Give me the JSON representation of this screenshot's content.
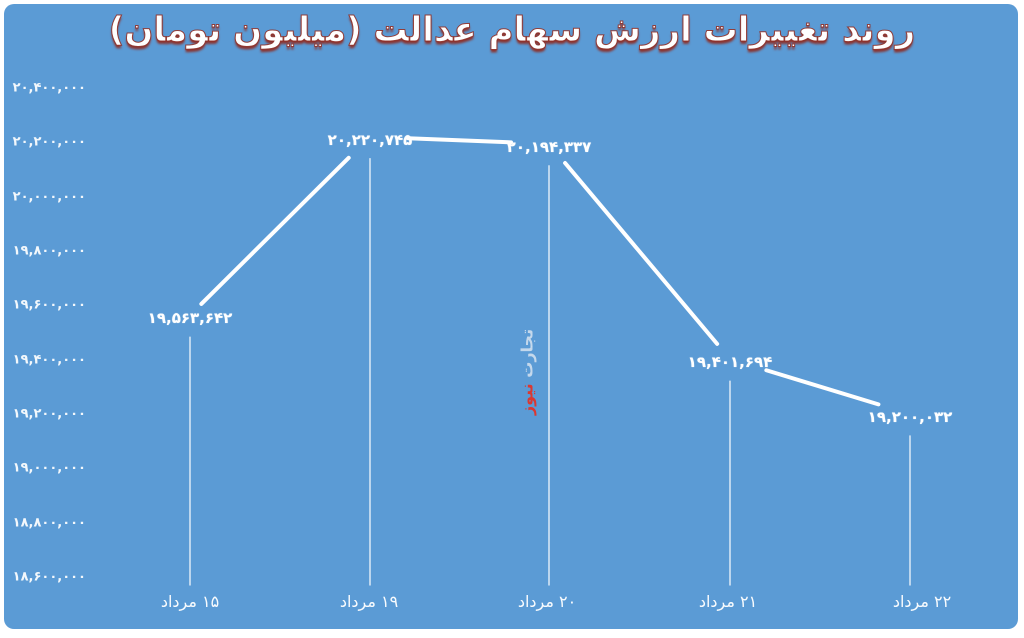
{
  "title": "روند تغییرات ارزش سهام عدالت (میلیون تومان)",
  "watermark": {
    "part1": "تجارت",
    "part2": "نیوز"
  },
  "colors": {
    "background": "#5b9bd5",
    "line": "#ffffff",
    "title_outline": "#8e2f27",
    "watermark_red": "#da3832"
  },
  "chart_data": {
    "type": "line",
    "title": "روند تغییرات ارزش سهام عدالت (میلیون تومان)",
    "categories": [
      "۱۵ مرداد",
      "۱۹ مرداد",
      "۲۰ مرداد",
      "۲۱ مرداد",
      "۲۲ مرداد"
    ],
    "values": [
      19563642,
      20220745,
      20194337,
      19401694,
      19200032
    ],
    "point_labels": [
      "۱۹,۵۶۳,۶۴۲",
      "۲۰,۲۲۰,۷۴۵",
      "۲۰,۱۹۴,۳۳۷",
      "۱۹,۴۰۱,۶۹۴",
      "۱۹,۲۰۰,۰۳۲"
    ],
    "y_ticks": [
      20400000,
      20200000,
      20000000,
      19800000,
      19600000,
      19400000,
      19200000,
      19000000,
      18800000,
      18600000
    ],
    "y_tick_labels": [
      "۲۰,۴۰۰,۰۰۰",
      "۲۰,۲۰۰,۰۰۰",
      "۲۰,۰۰۰,۰۰۰",
      "۱۹,۸۰۰,۰۰۰",
      "۱۹,۶۰۰,۰۰۰",
      "۱۹,۴۰۰,۰۰۰",
      "۱۹,۲۰۰,۰۰۰",
      "۱۹,۰۰۰,۰۰۰",
      "۱۸,۸۰۰,۰۰۰",
      "۱۸,۶۰۰,۰۰۰"
    ],
    "ylim": [
      18600000,
      20400000
    ],
    "xlabel": "",
    "ylabel": "",
    "grid": false,
    "legend": false
  }
}
